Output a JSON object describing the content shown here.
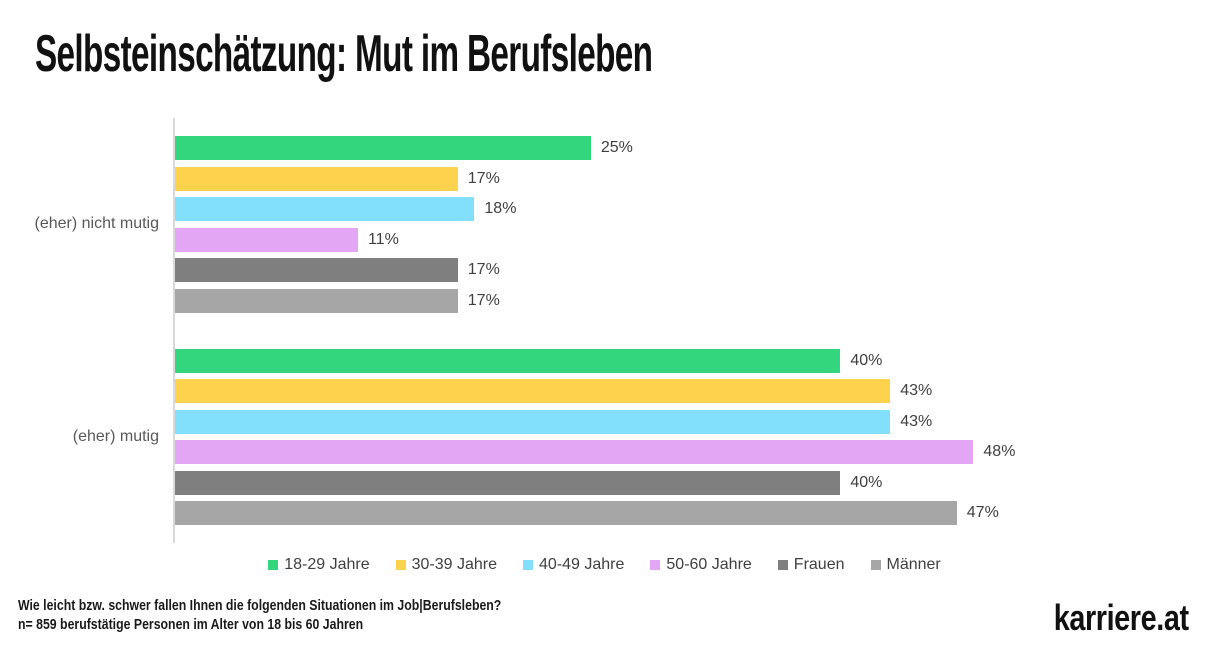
{
  "logo": "karriere.at",
  "footer": {
    "question": "Wie leicht bzw. schwer fallen Ihnen die folgenden Situationen im Job|Berufsleben?",
    "sample": "n= 859 berufstätige Personen im Alter von 18 bis 60 Jahren"
  },
  "chart_data": {
    "type": "bar",
    "orientation": "horizontal",
    "title": "Selbsteinschätzung: Mut im Berufsleben",
    "categories": [
      "(eher) nicht mutig",
      "(eher) mutig"
    ],
    "series": [
      {
        "name": "18-29 Jahre",
        "color": "#34d67d",
        "values": [
          25,
          40
        ]
      },
      {
        "name": "30-39 Jahre",
        "color": "#fdd34d",
        "values": [
          17,
          43
        ]
      },
      {
        "name": "40-49 Jahre",
        "color": "#83e0fc",
        "values": [
          18,
          43
        ]
      },
      {
        "name": "50-60 Jahre",
        "color": "#e2a6f4",
        "values": [
          11,
          48
        ]
      },
      {
        "name": "Frauen",
        "color": "#7f7f7f",
        "values": [
          17,
          40
        ]
      },
      {
        "name": "Männer",
        "color": "#a6a6a6",
        "values": [
          17,
          47
        ]
      }
    ],
    "value_suffix": "%",
    "axis_max": 60,
    "axis_color": "#d9d9d9",
    "grid": false,
    "legend_position": "bottom"
  }
}
